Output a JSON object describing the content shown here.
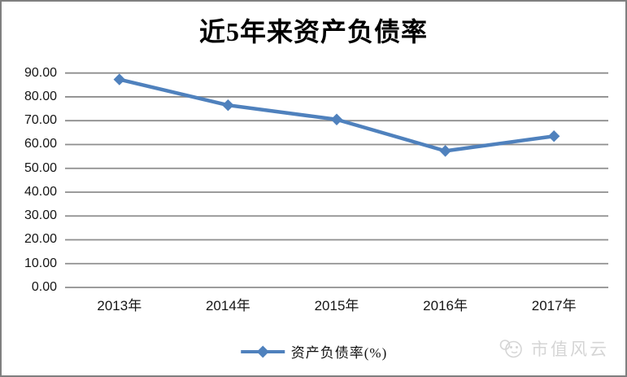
{
  "chart_data": {
    "type": "line",
    "title": "近5年来资产负债率",
    "categories": [
      "2013年",
      "2014年",
      "2015年",
      "2016年",
      "2017年"
    ],
    "series": [
      {
        "name": "资产负债率(%)",
        "values": [
          87.3,
          76.5,
          70.5,
          57.3,
          63.5
        ],
        "color": "#4f81bd",
        "marker": "diamond"
      }
    ],
    "ylim": [
      0,
      90
    ],
    "ytick_labels": [
      "0.00",
      "10.00",
      "20.00",
      "30.00",
      "40.00",
      "50.00",
      "60.00",
      "70.00",
      "80.00",
      "90.00"
    ],
    "ytick_values": [
      0,
      10,
      20,
      30,
      40,
      50,
      60,
      70,
      80,
      90
    ],
    "xlabel": "",
    "ylabel": "",
    "grid": true,
    "gridline_color": "#8e8e8e",
    "legend_position": "bottom"
  },
  "watermark": {
    "text": "市值风云",
    "icon": "panda-logo-icon"
  }
}
